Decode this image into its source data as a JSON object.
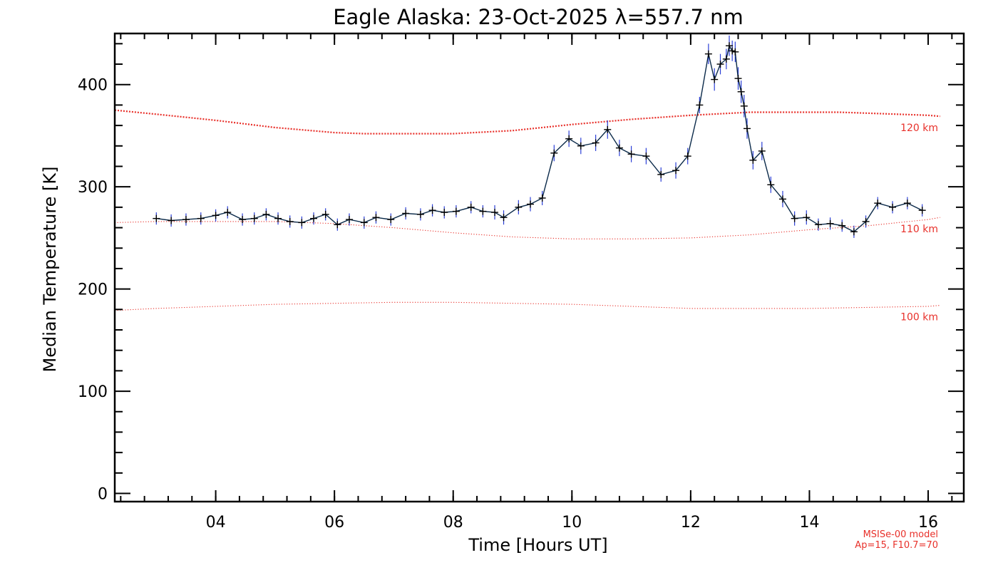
{
  "chart_data": {
    "type": "line",
    "title": "Eagle Alaska: 23-Oct-2025 λ=557.7 nm",
    "xlabel": "Time [Hours UT]",
    "ylabel": "Median Temperature [K]",
    "xlim": [
      2.3,
      16.6
    ],
    "ylim": [
      -8,
      450
    ],
    "x_ticks": [
      4,
      6,
      8,
      10,
      12,
      14,
      16
    ],
    "x_tick_labels": [
      "04",
      "06",
      "08",
      "10",
      "12",
      "14",
      "16"
    ],
    "y_ticks": [
      0,
      100,
      200,
      300,
      400
    ],
    "y_tick_labels": [
      "0",
      "100",
      "200",
      "300",
      "400"
    ],
    "grid": false,
    "colors": {
      "measured_line": "#0b2a4a",
      "error_bar": "#2b3fd6",
      "model": "#e8302a",
      "axes": "#000000"
    },
    "measured": {
      "x": [
        3.0,
        3.25,
        3.5,
        3.75,
        4.0,
        4.2,
        4.45,
        4.65,
        4.85,
        5.05,
        5.25,
        5.45,
        5.65,
        5.85,
        6.05,
        6.25,
        6.5,
        6.7,
        6.95,
        7.2,
        7.45,
        7.65,
        7.85,
        8.05,
        8.3,
        8.5,
        8.7,
        8.85,
        9.1,
        9.3,
        9.5,
        9.7,
        9.95,
        10.15,
        10.4,
        10.6,
        10.8,
        11.0,
        11.25,
        11.5,
        11.75,
        11.95,
        12.15,
        12.3,
        12.4,
        12.5,
        12.6,
        12.65,
        12.7,
        12.75,
        12.8,
        12.85,
        12.9,
        12.95,
        13.05,
        13.2,
        13.35,
        13.55,
        13.75,
        13.95,
        14.15,
        14.35,
        14.55,
        14.75,
        14.95,
        15.15,
        15.4,
        15.65,
        15.9
      ],
      "y": [
        269,
        267,
        268,
        269,
        272,
        275,
        268,
        269,
        273,
        269,
        266,
        265,
        269,
        273,
        263,
        268,
        265,
        270,
        268,
        274,
        273,
        277,
        275,
        276,
        280,
        276,
        275,
        270,
        280,
        283,
        289,
        333,
        347,
        340,
        343,
        356,
        338,
        332,
        330,
        312,
        316,
        330,
        380,
        430,
        405,
        420,
        425,
        438,
        433,
        432,
        406,
        393,
        379,
        357,
        326,
        335,
        302,
        288,
        269,
        270,
        263,
        264,
        262,
        256,
        266,
        284,
        280,
        284,
        277
      ],
      "err": [
        6,
        6,
        6,
        6,
        6,
        6,
        6,
        6,
        6,
        6,
        6,
        6,
        6,
        6,
        6,
        6,
        6,
        6,
        6,
        6,
        6,
        6,
        6,
        6,
        6,
        6,
        7,
        7,
        7,
        7,
        7,
        8,
        8,
        8,
        8,
        9,
        8,
        8,
        8,
        7,
        8,
        8,
        8,
        10,
        11,
        10,
        10,
        10,
        10,
        10,
        11,
        11,
        11,
        10,
        9,
        9,
        8,
        8,
        7,
        7,
        6,
        6,
        6,
        6,
        6,
        6,
        6,
        6,
        6
      ]
    },
    "model_curves": [
      {
        "label": "120 km",
        "x": [
          2.3,
          3.0,
          4.0,
          5.0,
          6.0,
          6.5,
          7.0,
          8.0,
          9.0,
          10.0,
          11.0,
          12.0,
          13.0,
          14.0,
          14.5,
          15.0,
          16.0,
          16.2
        ],
        "y": [
          375,
          371,
          365,
          358,
          353,
          352,
          352,
          352,
          355,
          361,
          366,
          370,
          373,
          373,
          373,
          372,
          370,
          369
        ],
        "style": "dotted-thick"
      },
      {
        "label": "110 km",
        "x": [
          2.3,
          3.0,
          4.0,
          5.0,
          6.0,
          7.0,
          8.0,
          9.0,
          10.0,
          11.0,
          12.0,
          13.0,
          14.0,
          15.0,
          16.0,
          16.2
        ],
        "y": [
          265,
          266,
          266,
          266,
          264,
          260,
          255,
          251,
          249,
          249,
          250,
          253,
          258,
          262,
          268,
          270
        ],
        "style": "dotted-thin"
      },
      {
        "label": "100 km",
        "x": [
          2.3,
          3.0,
          4.0,
          5.0,
          6.0,
          7.0,
          8.0,
          9.0,
          10.0,
          11.0,
          12.0,
          13.0,
          14.0,
          15.0,
          16.0,
          16.2
        ],
        "y": [
          179,
          181,
          183,
          185,
          186,
          187,
          187,
          186,
          185,
          183,
          181,
          181,
          181,
          182,
          183,
          184
        ],
        "style": "dotted-thin"
      }
    ],
    "model_note": [
      "MSISe-00 model",
      "Ap=15, F10.7=70"
    ]
  }
}
